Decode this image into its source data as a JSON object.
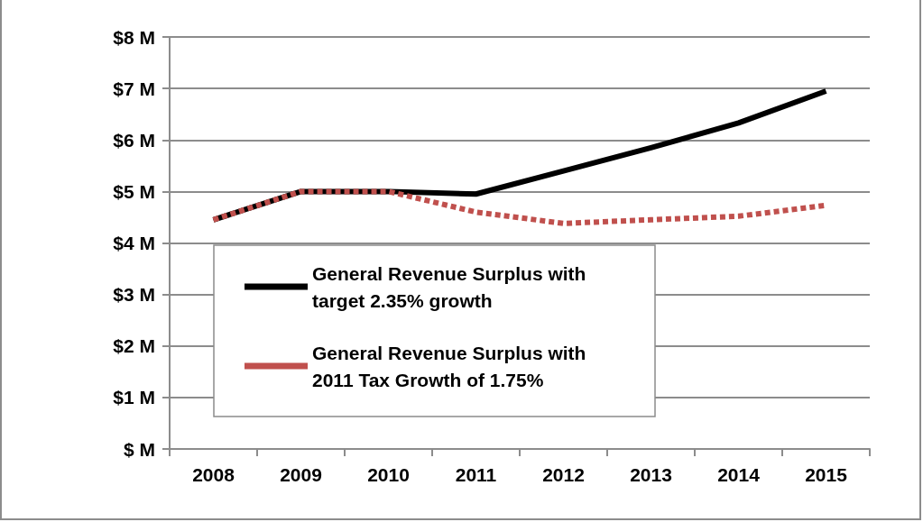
{
  "chart_data": {
    "type": "line",
    "categories": [
      "2008",
      "2009",
      "2010",
      "2011",
      "2012",
      "2013",
      "2014",
      "2015"
    ],
    "series": [
      {
        "name": "General Revenue Surplus with target 2.35% growth",
        "color": "#000000",
        "line_style": "solid",
        "values": [
          4.45,
          5.0,
          5.0,
          4.95,
          5.4,
          5.85,
          6.33,
          6.95
        ]
      },
      {
        "name": "General Revenue Surplus with 2011 Tax Growth of 1.75%",
        "color": "#c0504d",
        "line_style": "dashed",
        "values": [
          4.45,
          5.0,
          5.0,
          4.6,
          4.38,
          4.45,
          4.52,
          4.73
        ]
      }
    ],
    "ylim": [
      0,
      8
    ],
    "yticks": [
      {
        "value": 0,
        "label": "$ M"
      },
      {
        "value": 1,
        "label": "$1 M"
      },
      {
        "value": 2,
        "label": "$2 M"
      },
      {
        "value": 3,
        "label": "$3 M"
      },
      {
        "value": 4,
        "label": "$4 M"
      },
      {
        "value": 5,
        "label": "$5 M"
      },
      {
        "value": 6,
        "label": "$6 M"
      },
      {
        "value": 7,
        "label": "$7 M"
      },
      {
        "value": 8,
        "label": "$8 M"
      }
    ],
    "grid": "y",
    "legend": "bottom left",
    "marker": "none"
  }
}
